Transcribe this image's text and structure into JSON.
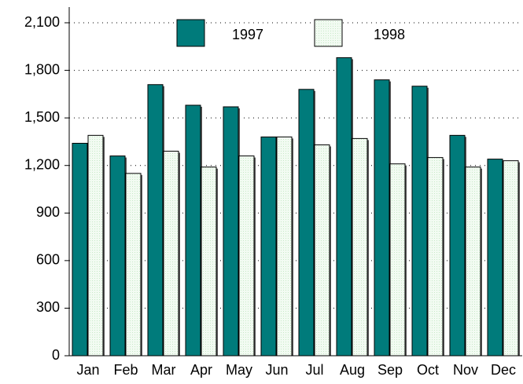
{
  "chart_data": {
    "type": "bar",
    "categories": [
      "Jan",
      "Feb",
      "Mar",
      "Apr",
      "May",
      "Jun",
      "Jul",
      "Aug",
      "Sep",
      "Oct",
      "Nov",
      "Dec"
    ],
    "series": [
      {
        "name": "1997",
        "color": "#007b7b",
        "values": [
          1340,
          1260,
          1710,
          1580,
          1570,
          1380,
          1680,
          1880,
          1740,
          1700,
          1390,
          1240
        ]
      },
      {
        "name": "1998",
        "color": "#f2fbf2",
        "values": [
          1390,
          1150,
          1290,
          1190,
          1260,
          1380,
          1330,
          1370,
          1210,
          1250,
          1190,
          1230
        ]
      }
    ],
    "ylim": [
      0,
      2100
    ],
    "yticks": [
      0,
      300,
      600,
      900,
      {
        "value": 1200,
        "label": "1,200"
      },
      {
        "value": 1500,
        "label": "1,500"
      },
      {
        "value": 1800,
        "label": "1,800"
      },
      {
        "value": 2100,
        "label": "2,100"
      }
    ],
    "grid": true,
    "legend": "top"
  }
}
